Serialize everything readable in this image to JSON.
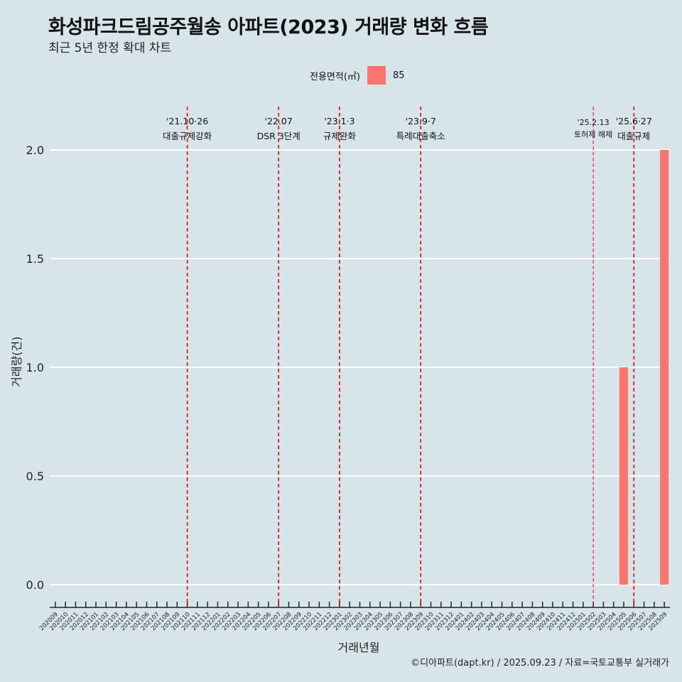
{
  "header": {
    "title": "화성파크드림공주월송 아파트(2023) 거래량 변화 흐름",
    "subtitle": "최근 5년 한정 확대 차트"
  },
  "legend": {
    "title": "전용면적(㎡)",
    "item_label": "85",
    "item_color": "#f8766d"
  },
  "caption": "©디아파트(dapt.kr) / 2025.09.23 / 자료=국토교통부 실거래가",
  "chart_data": {
    "type": "bar",
    "title": "화성파크드림공주월송 아파트(2023) 거래량 변화 흐름",
    "xlabel": "거래년월",
    "ylabel": "거래량(건)",
    "ylim": [
      0,
      2
    ],
    "yticks": [
      0.0,
      0.5,
      1.0,
      1.5,
      2.0
    ],
    "ytick_labels": [
      "0.0",
      "0.5",
      "1.0",
      "1.5",
      "2.0"
    ],
    "categories": [
      "202009",
      "202010",
      "202011",
      "202012",
      "202101",
      "202102",
      "202103",
      "202104",
      "202105",
      "202106",
      "202107",
      "202108",
      "202109",
      "202110",
      "202111",
      "202112",
      "202201",
      "202202",
      "202203",
      "202204",
      "202205",
      "202206",
      "202207",
      "202208",
      "202209",
      "202210",
      "202211",
      "202212",
      "202301",
      "202302",
      "202303",
      "202304",
      "202305",
      "202306",
      "202307",
      "202308",
      "202309",
      "202310",
      "202311",
      "202312",
      "202401",
      "202402",
      "202403",
      "202404",
      "202405",
      "202406",
      "202407",
      "202408",
      "202409",
      "202410",
      "202411",
      "202412",
      "202501",
      "202502",
      "202503",
      "202504",
      "202505",
      "202506",
      "202507",
      "202508",
      "202509"
    ],
    "series": [
      {
        "name": "85",
        "color": "#f8766d",
        "values": [
          0,
          0,
          0,
          0,
          0,
          0,
          0,
          0,
          0,
          0,
          0,
          0,
          0,
          0,
          0,
          0,
          0,
          0,
          0,
          0,
          0,
          0,
          0,
          0,
          0,
          0,
          0,
          0,
          0,
          0,
          0,
          0,
          0,
          0,
          0,
          0,
          0,
          0,
          0,
          0,
          0,
          0,
          0,
          0,
          0,
          0,
          0,
          0,
          0,
          0,
          0,
          0,
          0,
          0,
          0,
          0,
          1,
          0,
          0,
          0,
          2
        ]
      }
    ],
    "events": [
      {
        "category": "202110",
        "date": "'21.10·26",
        "label": "대출규제강화",
        "style": "major"
      },
      {
        "category": "202207",
        "date": "'22.07",
        "label": "DSR 3단계",
        "style": "major"
      },
      {
        "category": "202301",
        "date": "'23.1·3",
        "label": "규제완화",
        "style": "major"
      },
      {
        "category": "202309",
        "date": "'23.9·7",
        "label": "특례대출축소",
        "style": "major"
      },
      {
        "category": "202502",
        "date": "'25.2.13",
        "label": "토허제 해제",
        "style": "minor"
      },
      {
        "category": "202506",
        "date": "'25.6·27",
        "label": "대출규제",
        "style": "major"
      }
    ],
    "event_color": "#e8000b",
    "grid": true,
    "legend_position": "top"
  }
}
